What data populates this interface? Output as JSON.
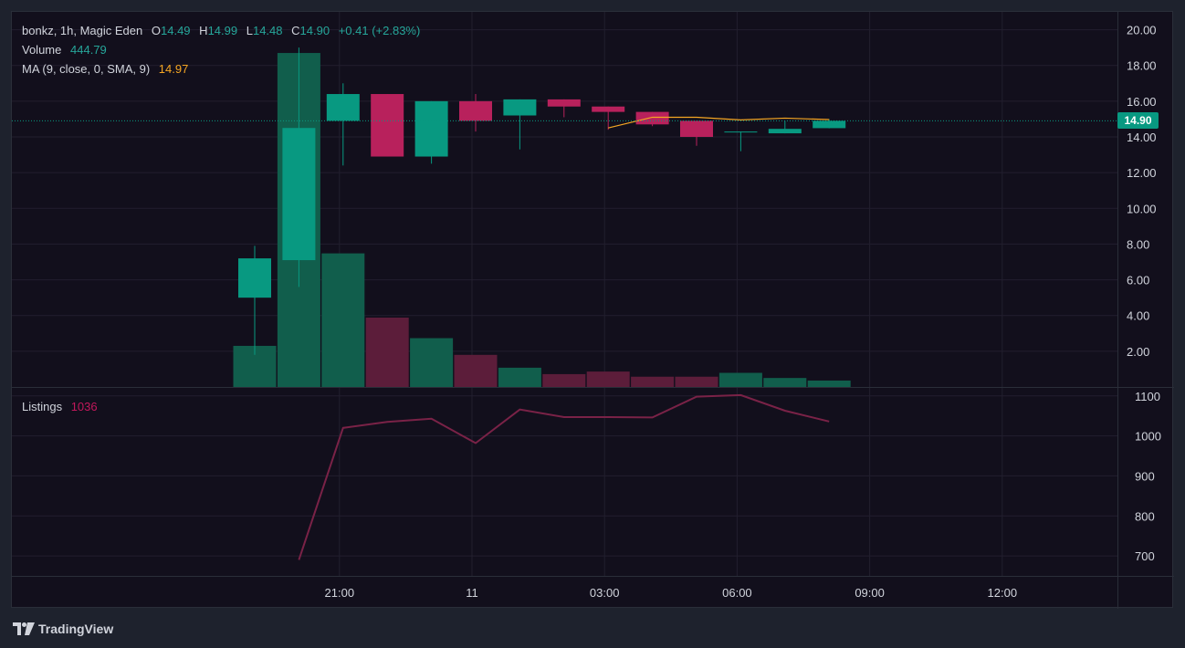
{
  "legend": {
    "symbol": "bonkz, 1h, Magic Eden",
    "open_label": "O",
    "open": "14.49",
    "high_label": "H",
    "high": "14.99",
    "low_label": "L",
    "low": "14.48",
    "close_label": "C",
    "close": "14.90",
    "change": "+0.41 (+2.83%)",
    "volume_label": "Volume",
    "volume": "444.79",
    "ma_label": "MA (9, close, 0, SMA, 9)",
    "ma_value": "14.97",
    "listings_label": "Listings",
    "listings_value": "1036"
  },
  "current_price_tag": "14.90",
  "brand": "TradingView",
  "colors": {
    "up": "#089981",
    "down": "#b8215c",
    "ma": "#f5a623",
    "listings": "#7a2247",
    "vol_up": "#115e4c",
    "vol_down": "#5c1d3a",
    "grid": "#221f2e",
    "text": "#d1d4dc"
  },
  "chart_data": [
    {
      "type": "candlestick",
      "xlabel": "",
      "ylabel": "",
      "ylim": [
        0,
        21
      ],
      "y_ticks": [
        "2.00",
        "4.00",
        "6.00",
        "8.00",
        "10.00",
        "12.00",
        "14.00",
        "16.00",
        "18.00",
        "20.00"
      ],
      "x_ticks": [
        {
          "label": "21:00",
          "index": 2
        },
        {
          "label": "11",
          "index": 5
        },
        {
          "label": "03:00",
          "index": 8
        },
        {
          "label": "06:00",
          "index": 11
        },
        {
          "label": "09:00",
          "index": 14
        },
        {
          "label": "12:00",
          "index": 17
        }
      ],
      "candles": [
        {
          "o": 5.0,
          "h": 7.9,
          "l": 1.8,
          "c": 7.2
        },
        {
          "o": 7.1,
          "h": 19.0,
          "l": 5.6,
          "c": 14.5
        },
        {
          "o": 14.9,
          "h": 17.0,
          "l": 12.4,
          "c": 16.4
        },
        {
          "o": 16.4,
          "h": 16.4,
          "l": 12.9,
          "c": 12.9
        },
        {
          "o": 12.9,
          "h": 16.0,
          "l": 12.5,
          "c": 16.0
        },
        {
          "o": 16.0,
          "h": 16.4,
          "l": 14.3,
          "c": 14.9
        },
        {
          "o": 15.2,
          "h": 16.1,
          "l": 13.3,
          "c": 16.1
        },
        {
          "o": 16.1,
          "h": 16.1,
          "l": 15.1,
          "c": 15.7
        },
        {
          "o": 15.7,
          "h": 15.7,
          "l": 14.4,
          "c": 15.4
        },
        {
          "o": 15.4,
          "h": 15.4,
          "l": 14.6,
          "c": 14.7
        },
        {
          "o": 14.9,
          "h": 14.9,
          "l": 13.5,
          "c": 14.0
        },
        {
          "o": 14.3,
          "h": 14.3,
          "l": 13.2,
          "c": 14.3
        },
        {
          "o": 14.2,
          "h": 14.9,
          "l": 14.2,
          "c": 14.45
        },
        {
          "o": 14.49,
          "h": 14.99,
          "l": 14.48,
          "c": 14.9
        }
      ],
      "volume": [
        160,
        1300,
        520,
        270,
        190,
        125,
        75,
        50,
        60,
        40,
        40,
        55,
        35,
        25
      ],
      "volume_max": 1460,
      "ma": {
        "start_index": 8,
        "values": [
          14.5,
          15.1,
          15.1,
          14.95,
          15.05,
          14.97
        ]
      },
      "current_price": 14.9
    },
    {
      "type": "line",
      "series": [
        {
          "name": "Listings",
          "values": [
            690,
            1020,
            1035,
            1043,
            982,
            1066,
            1047,
            1047,
            1046,
            1098,
            1102,
            1063,
            1036
          ],
          "start_index": 1
        }
      ],
      "ylim": [
        650,
        1120
      ],
      "y_ticks": [
        "700",
        "800",
        "900",
        "1000",
        "1100"
      ]
    }
  ]
}
